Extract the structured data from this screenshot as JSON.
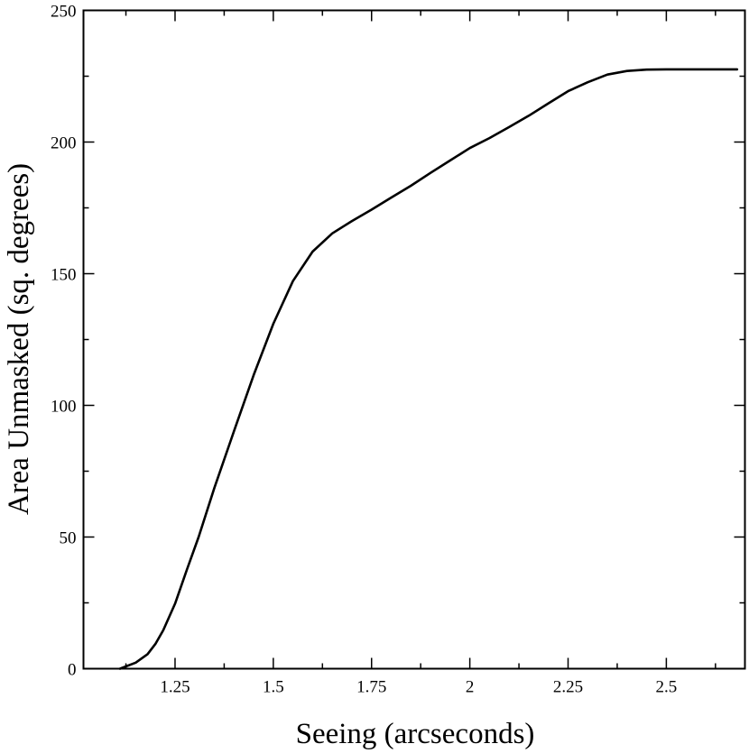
{
  "chart_data": {
    "type": "line",
    "title": "",
    "xlabel": "Seeing (arcseconds)",
    "ylabel": "Area Unmasked (sq. degrees)",
    "xlim": [
      1.017,
      2.7
    ],
    "ylim": [
      0,
      250
    ],
    "x_major_ticks": [
      1.25,
      1.5,
      1.75,
      2,
      2.25,
      2.5
    ],
    "x_tick_labels": [
      "1.25",
      "1.5",
      "1.75",
      "2",
      "2.25",
      "2.5"
    ],
    "x_minor_ticks": [
      1.125,
      1.375,
      1.625,
      1.875,
      2.125,
      2.375,
      2.625
    ],
    "y_major_ticks": [
      0,
      50,
      100,
      150,
      200,
      250
    ],
    "y_tick_labels": [
      "0",
      "50",
      "100",
      "150",
      "200",
      "250"
    ],
    "y_minor_ticks": [
      25,
      75,
      125,
      175,
      225
    ],
    "grid": false,
    "legend": "none",
    "series": [
      {
        "color": "#000000",
        "x": [
          1.11,
          1.15,
          1.18,
          1.2,
          1.22,
          1.25,
          1.28,
          1.31,
          1.35,
          1.4,
          1.45,
          1.5,
          1.55,
          1.6,
          1.65,
          1.7,
          1.75,
          1.8,
          1.85,
          1.9,
          1.95,
          2.0,
          2.05,
          2.1,
          2.15,
          2.2,
          2.25,
          2.3,
          2.35,
          2.4,
          2.45,
          2.5,
          2.55,
          2.6,
          2.65,
          2.68
        ],
        "y": [
          0,
          2.3,
          5.5,
          9.4,
          14.6,
          24.7,
          37.5,
          50.0,
          68.6,
          90.2,
          111.5,
          131.0,
          147.2,
          158.4,
          165.3,
          170.0,
          174.3,
          178.9,
          183.4,
          188.3,
          193.0,
          197.7,
          201.5,
          205.7,
          210.0,
          214.7,
          219.3,
          222.7,
          225.6,
          227.0,
          227.5,
          227.6,
          227.6,
          227.6,
          227.6,
          227.6
        ]
      }
    ]
  }
}
